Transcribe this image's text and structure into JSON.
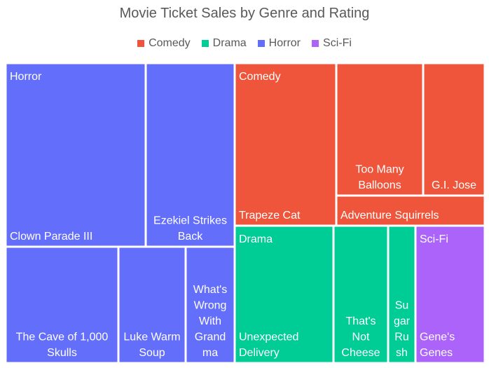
{
  "chart_data": {
    "type": "treemap",
    "title": "Movie Ticket Sales by Genre and Rating",
    "legend_position": "top",
    "groups": [
      {
        "name": "Horror",
        "color": "#636efa",
        "items": [
          {
            "name": "Clown Parade III",
            "label_lines": [
              "Clown Parade III"
            ]
          },
          {
            "name": "Ezekiel Strikes Back",
            "label_lines": [
              "Ezekiel Strikes",
              "Back"
            ]
          },
          {
            "name": "The Cave of 1,000 Skulls",
            "label_lines": [
              "The Cave of 1,000",
              "Skulls"
            ]
          },
          {
            "name": "Luke Warm Soup",
            "label_lines": [
              "Luke Warm",
              "Soup"
            ]
          },
          {
            "name": "What's Wrong With Grand ma",
            "label_lines": [
              "What's",
              "Wrong",
              "With",
              "Grand",
              "ma"
            ]
          }
        ]
      },
      {
        "name": "Comedy",
        "color": "#ef553b",
        "items": [
          {
            "name": "Trapeze Cat",
            "label_lines": [
              "Trapeze Cat"
            ]
          },
          {
            "name": "Too Many Balloons",
            "label_lines": [
              "Too Many",
              "Balloons"
            ]
          },
          {
            "name": "G.I. Jose",
            "label_lines": [
              "G.I. Jose"
            ]
          },
          {
            "name": "Adventure Squirrels",
            "label_lines": [
              "Adventure Squirrels"
            ]
          }
        ]
      },
      {
        "name": "Drama",
        "color": "#00cc96",
        "items": [
          {
            "name": "Unexpected Delivery",
            "label_lines": [
              "Unexpected",
              "Delivery"
            ]
          },
          {
            "name": "That's Not Cheese",
            "label_lines": [
              "That's",
              "Not",
              "Cheese"
            ]
          },
          {
            "name": "Sugar Rush",
            "label_lines": [
              "Su",
              "gar",
              "Ru",
              "sh"
            ]
          }
        ]
      },
      {
        "name": "Sci-Fi",
        "color": "#ab63fa",
        "items": [
          {
            "name": "Gene's Genes",
            "label_lines": [
              "Gene's",
              "Genes"
            ]
          }
        ]
      }
    ]
  }
}
